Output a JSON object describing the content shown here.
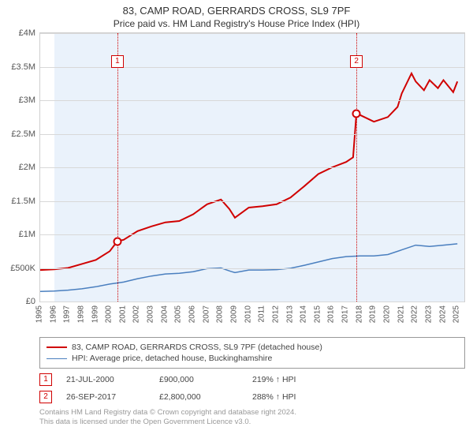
{
  "title": "83, CAMP ROAD, GERRARDS CROSS, SL9 7PF",
  "subtitle": "Price paid vs. HM Land Registry's House Price Index (HPI)",
  "chart": {
    "type": "line",
    "background_color": "#ffffff",
    "plot_bg_color": "#eaf2fb",
    "grid_color": "#d8d8d8",
    "border_color": "#cfcfcf",
    "x_years": [
      1995,
      1996,
      1997,
      1998,
      1999,
      2000,
      2001,
      2002,
      2003,
      2004,
      2005,
      2006,
      2007,
      2008,
      2009,
      2010,
      2011,
      2012,
      2013,
      2014,
      2015,
      2016,
      2017,
      2018,
      2019,
      2020,
      2021,
      2022,
      2023,
      2024,
      2025
    ],
    "xlim": [
      1995,
      2025.5
    ],
    "plot_bg_x": [
      1996,
      2025.5
    ],
    "ylim": [
      0,
      4000000
    ],
    "ytick_step": 500000,
    "yticks": [
      {
        "v": 0,
        "label": "£0"
      },
      {
        "v": 500000,
        "label": "£500K"
      },
      {
        "v": 1000000,
        "label": "£1M"
      },
      {
        "v": 1500000,
        "label": "£1.5M"
      },
      {
        "v": 2000000,
        "label": "£2M"
      },
      {
        "v": 2500000,
        "label": "£2.5M"
      },
      {
        "v": 3000000,
        "label": "£3M"
      },
      {
        "v": 3500000,
        "label": "£3.5M"
      },
      {
        "v": 4000000,
        "label": "£4M"
      }
    ],
    "label_fontsize": 11,
    "series": [
      {
        "name": "property",
        "color": "#d00000",
        "width": 2,
        "points": [
          [
            1995,
            470000
          ],
          [
            1996,
            480000
          ],
          [
            1997,
            500000
          ],
          [
            1998,
            560000
          ],
          [
            1999,
            620000
          ],
          [
            2000,
            750000
          ],
          [
            2000.55,
            900000
          ],
          [
            2001,
            920000
          ],
          [
            2002,
            1050000
          ],
          [
            2003,
            1120000
          ],
          [
            2004,
            1180000
          ],
          [
            2005,
            1200000
          ],
          [
            2006,
            1300000
          ],
          [
            2007,
            1450000
          ],
          [
            2008,
            1520000
          ],
          [
            2008.6,
            1380000
          ],
          [
            2009,
            1250000
          ],
          [
            2010,
            1400000
          ],
          [
            2011,
            1420000
          ],
          [
            2012,
            1450000
          ],
          [
            2013,
            1550000
          ],
          [
            2014,
            1720000
          ],
          [
            2015,
            1900000
          ],
          [
            2016,
            2000000
          ],
          [
            2017,
            2080000
          ],
          [
            2017.5,
            2150000
          ],
          [
            2017.74,
            2800000
          ],
          [
            2018,
            2780000
          ],
          [
            2019,
            2680000
          ],
          [
            2020,
            2750000
          ],
          [
            2020.7,
            2900000
          ],
          [
            2021,
            3100000
          ],
          [
            2021.7,
            3400000
          ],
          [
            2022,
            3280000
          ],
          [
            2022.6,
            3150000
          ],
          [
            2023,
            3300000
          ],
          [
            2023.6,
            3180000
          ],
          [
            2024,
            3300000
          ],
          [
            2024.7,
            3120000
          ],
          [
            2025,
            3280000
          ]
        ],
        "markers": [
          {
            "x": 2000.55,
            "y": 900000
          },
          {
            "x": 2017.74,
            "y": 2800000
          }
        ]
      },
      {
        "name": "hpi",
        "color": "#4a7fbf",
        "width": 1.5,
        "points": [
          [
            1995,
            150000
          ],
          [
            1996,
            155000
          ],
          [
            1997,
            170000
          ],
          [
            1998,
            190000
          ],
          [
            1999,
            220000
          ],
          [
            2000,
            260000
          ],
          [
            2001,
            290000
          ],
          [
            2002,
            340000
          ],
          [
            2003,
            380000
          ],
          [
            2004,
            410000
          ],
          [
            2005,
            420000
          ],
          [
            2006,
            445000
          ],
          [
            2007,
            490000
          ],
          [
            2008,
            500000
          ],
          [
            2008.7,
            450000
          ],
          [
            2009,
            430000
          ],
          [
            2010,
            470000
          ],
          [
            2011,
            470000
          ],
          [
            2012,
            475000
          ],
          [
            2013,
            495000
          ],
          [
            2014,
            540000
          ],
          [
            2015,
            590000
          ],
          [
            2016,
            640000
          ],
          [
            2017,
            670000
          ],
          [
            2018,
            680000
          ],
          [
            2019,
            680000
          ],
          [
            2020,
            700000
          ],
          [
            2021,
            770000
          ],
          [
            2022,
            840000
          ],
          [
            2023,
            820000
          ],
          [
            2024,
            840000
          ],
          [
            2025,
            860000
          ]
        ]
      }
    ],
    "vlines": [
      {
        "x": 2000.55,
        "label": "1",
        "marker_top": 28
      },
      {
        "x": 2017.74,
        "label": "2",
        "marker_top": 28
      }
    ]
  },
  "legend": [
    {
      "style": "red",
      "label": "83, CAMP ROAD, GERRARDS CROSS, SL9 7PF (detached house)"
    },
    {
      "style": "blue",
      "label": "HPI: Average price, detached house, Buckinghamshire"
    }
  ],
  "events": [
    {
      "n": "1",
      "date": "21-JUL-2000",
      "price": "£900,000",
      "pct": "219% ↑ HPI"
    },
    {
      "n": "2",
      "date": "26-SEP-2017",
      "price": "£2,800,000",
      "pct": "288% ↑ HPI"
    }
  ],
  "footer_l1": "Contains HM Land Registry data © Crown copyright and database right 2024.",
  "footer_l2": "This data is licensed under the Open Government Licence v3.0."
}
